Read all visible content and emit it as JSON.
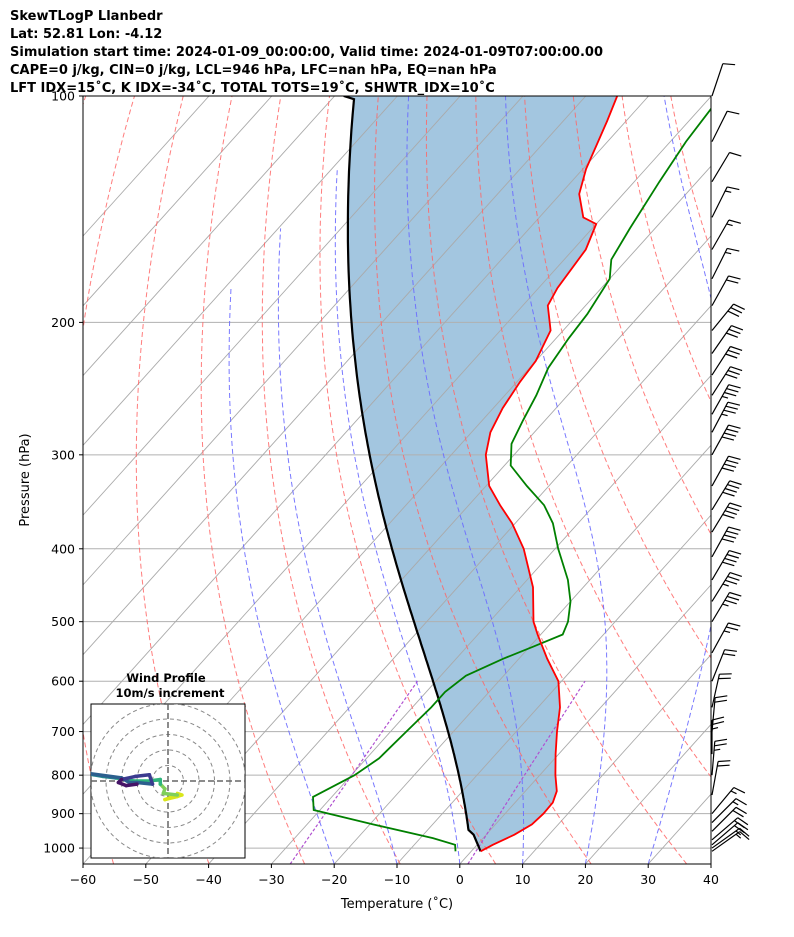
{
  "header": {
    "line1": "SkewTLogP Llanbedr",
    "line2": "Lat: 52.81   Lon: -4.12",
    "line3": "Simulation start time: 2024-01-09_00:00:00, Valid time: 2024-01-09T07:00:00.00",
    "line4": "CAPE=0 j/kg, CIN=0 j/kg, LCL=946 hPa, LFC=nan hPa, EQ=nan hPa",
    "line5": "LFT IDX=15˚C, K IDX=-34˚C, TOTAL TOTS=19˚C, SHWTR_IDX=10˚C"
  },
  "colors": {
    "temperature": "#ff0000",
    "dewpoint": "#008000",
    "parcel": "#000000",
    "cape_fill": "#a3c6e0",
    "dry_adiabat": "#ff6666",
    "moist_adiabat": "#6a6aff",
    "mixing_ratio": "#b050d0",
    "isotherm": "#aaaaaa"
  },
  "chart_data": [
    {
      "type": "line",
      "subtype": "skew-T log-P",
      "xlabel": "Temperature (˚C)",
      "ylabel": "Pressure (hPa)",
      "xlim": [
        -60,
        40
      ],
      "ylim": [
        1050,
        100
      ],
      "y_scale": "log",
      "x_ticks": [
        -60,
        -50,
        -40,
        -30,
        -20,
        -10,
        0,
        10,
        20,
        30,
        40
      ],
      "y_ticks": [
        100,
        200,
        300,
        400,
        500,
        600,
        700,
        800,
        900,
        1000
      ],
      "grid": true,
      "temperature_profile": [
        {
          "p": 1010,
          "t": 1.5
        },
        {
          "p": 990,
          "t": 2.5
        },
        {
          "p": 960,
          "t": 4.5
        },
        {
          "p": 930,
          "t": 5.8
        },
        {
          "p": 900,
          "t": 6.1
        },
        {
          "p": 870,
          "t": 6.0
        },
        {
          "p": 840,
          "t": 5.0
        },
        {
          "p": 800,
          "t": 2.5
        },
        {
          "p": 750,
          "t": -0.5
        },
        {
          "p": 700,
          "t": -3.5
        },
        {
          "p": 650,
          "t": -6.5
        },
        {
          "p": 600,
          "t": -10.5
        },
        {
          "p": 560,
          "t": -15.5
        },
        {
          "p": 520,
          "t": -20.5
        },
        {
          "p": 500,
          "t": -23.0
        },
        {
          "p": 450,
          "t": -28.0
        },
        {
          "p": 400,
          "t": -35.0
        },
        {
          "p": 370,
          "t": -40.5
        },
        {
          "p": 350,
          "t": -45.0
        },
        {
          "p": 330,
          "t": -49.5
        },
        {
          "p": 300,
          "t": -54.5
        },
        {
          "p": 280,
          "t": -57.0
        },
        {
          "p": 260,
          "t": -58.5
        },
        {
          "p": 240,
          "t": -59.5
        },
        {
          "p": 225,
          "t": -60.0
        },
        {
          "p": 205,
          "t": -62.0
        },
        {
          "p": 190,
          "t": -66.0
        },
        {
          "p": 180,
          "t": -67.0
        },
        {
          "p": 160,
          "t": -68.0
        },
        {
          "p": 148,
          "t": -70.0
        },
        {
          "p": 145,
          "t": -73.0
        },
        {
          "p": 135,
          "t": -77.0
        },
        {
          "p": 125,
          "t": -79.5
        },
        {
          "p": 115,
          "t": -81.5
        },
        {
          "p": 108,
          "t": -83.0
        },
        {
          "p": 100,
          "t": -85.0
        }
      ],
      "dewpoint_profile": [
        {
          "p": 1010,
          "t": -2.5
        },
        {
          "p": 990,
          "t": -3.5
        },
        {
          "p": 970,
          "t": -8.0
        },
        {
          "p": 930,
          "t": -19.5
        },
        {
          "p": 890,
          "t": -31.0
        },
        {
          "p": 855,
          "t": -33.0
        },
        {
          "p": 800,
          "t": -29.5
        },
        {
          "p": 760,
          "t": -28.0
        },
        {
          "p": 700,
          "t": -27.5
        },
        {
          "p": 650,
          "t": -27.0
        },
        {
          "p": 620,
          "t": -27.0
        },
        {
          "p": 590,
          "t": -26.0
        },
        {
          "p": 560,
          "t": -22.5
        },
        {
          "p": 540,
          "t": -19.5
        },
        {
          "p": 520,
          "t": -16.5
        },
        {
          "p": 500,
          "t": -17.5
        },
        {
          "p": 470,
          "t": -20.0
        },
        {
          "p": 440,
          "t": -23.5
        },
        {
          "p": 400,
          "t": -29.5
        },
        {
          "p": 370,
          "t": -34.0
        },
        {
          "p": 350,
          "t": -38.0
        },
        {
          "p": 330,
          "t": -43.5
        },
        {
          "p": 310,
          "t": -49.0
        },
        {
          "p": 290,
          "t": -52.0
        },
        {
          "p": 270,
          "t": -53.5
        },
        {
          "p": 250,
          "t": -55.0
        },
        {
          "p": 230,
          "t": -57.0
        },
        {
          "p": 210,
          "t": -58.0
        },
        {
          "p": 195,
          "t": -58.5
        },
        {
          "p": 175,
          "t": -60.0
        },
        {
          "p": 165,
          "t": -62.5
        },
        {
          "p": 150,
          "t": -64.0
        },
        {
          "p": 130,
          "t": -66.0
        },
        {
          "p": 115,
          "t": -67.5
        },
        {
          "p": 100,
          "t": -68.5
        }
      ],
      "parcel_profile": [
        {
          "p": 1010,
          "t": 1.5
        },
        {
          "p": 960,
          "t": -2.0
        },
        {
          "p": 946,
          "t": -3.5
        }
      ],
      "lcl": {
        "p": 946,
        "t": -3.5
      },
      "wind_barbs": [
        {
          "p": 1010,
          "u": -7,
          "v": -5
        },
        {
          "p": 1000,
          "u": -7,
          "v": -5
        },
        {
          "p": 990,
          "u": -7,
          "v": -6
        },
        {
          "p": 975,
          "u": -7,
          "v": -6
        },
        {
          "p": 950,
          "u": -7,
          "v": -7
        },
        {
          "p": 925,
          "u": -6,
          "v": -6
        },
        {
          "p": 900,
          "u": -5,
          "v": -6
        },
        {
          "p": 850,
          "u": -2,
          "v": -11
        },
        {
          "p": 800,
          "u": -1,
          "v": -12
        },
        {
          "p": 750,
          "u": 0,
          "v": -12
        },
        {
          "p": 700,
          "u": -1,
          "v": -11
        },
        {
          "p": 650,
          "u": -2,
          "v": -9
        },
        {
          "p": 600,
          "u": -4,
          "v": -10
        },
        {
          "p": 550,
          "u": -6,
          "v": -11
        },
        {
          "p": 500,
          "u": -9,
          "v": -15
        },
        {
          "p": 470,
          "u": -10,
          "v": -16
        },
        {
          "p": 440,
          "u": -10,
          "v": -17
        },
        {
          "p": 410,
          "u": -10,
          "v": -18
        },
        {
          "p": 380,
          "u": -11,
          "v": -18
        },
        {
          "p": 355,
          "u": -11,
          "v": -18
        },
        {
          "p": 330,
          "u": -10,
          "v": -18
        },
        {
          "p": 300,
          "u": -10,
          "v": -18
        },
        {
          "p": 280,
          "u": -9,
          "v": -17
        },
        {
          "p": 265,
          "u": -9,
          "v": -16
        },
        {
          "p": 250,
          "u": -9,
          "v": -14
        },
        {
          "p": 235,
          "u": -9,
          "v": -14
        },
        {
          "p": 220,
          "u": -9,
          "v": -13
        },
        {
          "p": 205,
          "u": -9,
          "v": -11
        },
        {
          "p": 190,
          "u": -5,
          "v": -9
        },
        {
          "p": 175,
          "u": -4,
          "v": -8
        },
        {
          "p": 160,
          "u": -4,
          "v": -7
        },
        {
          "p": 145,
          "u": -3,
          "v": -6
        },
        {
          "p": 130,
          "u": -3,
          "v": -5
        },
        {
          "p": 115,
          "u": -2,
          "v": -4
        },
        {
          "p": 100,
          "u": -2,
          "v": -6
        }
      ]
    },
    {
      "type": "line",
      "subtype": "hodograph",
      "title": "Wind Profile",
      "subtitle": "10m/s increment",
      "ring_increment": 10,
      "rings": [
        10,
        20,
        30,
        40,
        50
      ],
      "colormap": [
        "#d9e61a",
        "#7fcf5a",
        "#2fb47c",
        "#238a8d",
        "#2c5f8e",
        "#3b3b8f",
        "#461467"
      ],
      "points": [
        {
          "u": 6,
          "v": -8
        },
        {
          "u": 9,
          "v": -9
        },
        {
          "u": 6,
          "v": -10
        },
        {
          "u": -2,
          "v": -12
        },
        {
          "u": 6,
          "v": -9
        },
        {
          "u": -3,
          "v": -8
        },
        {
          "u": -2,
          "v": -5
        },
        {
          "u": -5,
          "v": -2
        },
        {
          "u": -5,
          "v": 1
        },
        {
          "u": -12,
          "v": 0
        },
        {
          "u": -22,
          "v": 0
        },
        {
          "u": -34,
          "v": 2
        },
        {
          "u": -42,
          "v": 3
        },
        {
          "u": -48,
          "v": 4
        },
        {
          "u": -52,
          "v": 5
        },
        {
          "u": -30,
          "v": 2
        },
        {
          "u": -25,
          "v": -1
        },
        {
          "u": -20,
          "v": -1
        },
        {
          "u": -10,
          "v": -2
        },
        {
          "u": -12,
          "v": 4
        },
        {
          "u": -21,
          "v": 3
        },
        {
          "u": -30,
          "v": 1
        },
        {
          "u": -32,
          "v": -1
        },
        {
          "u": -27,
          "v": -3
        },
        {
          "u": -20,
          "v": -2
        }
      ]
    }
  ]
}
